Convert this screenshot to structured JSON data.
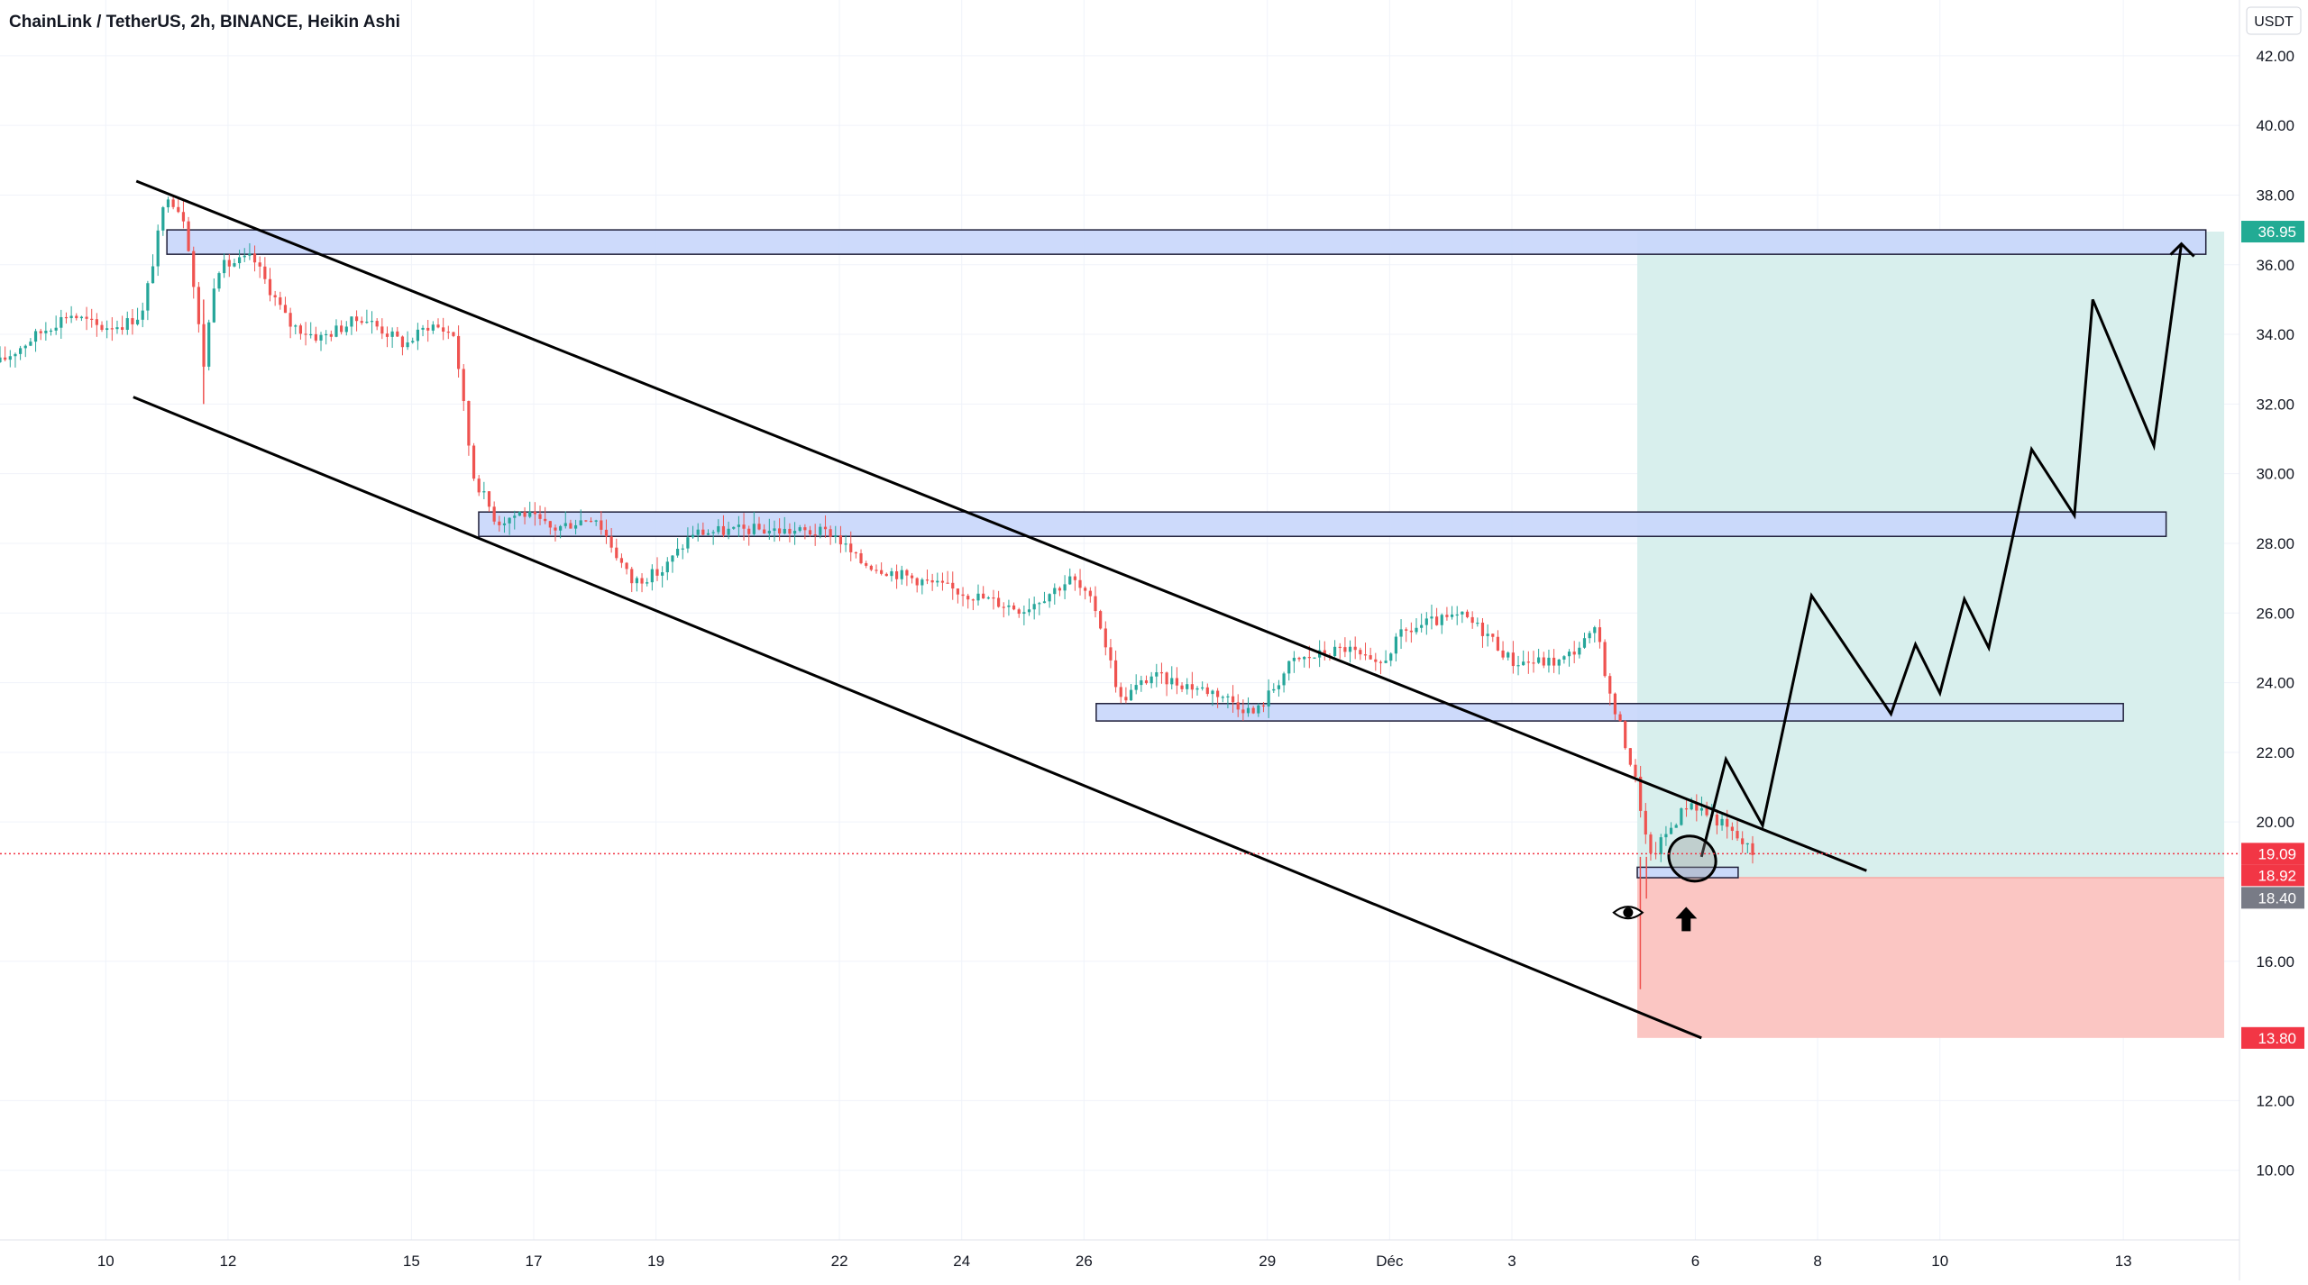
{
  "header": {
    "title": "ChainLink / TetherUS, 2h, BINANCE, Heikin Ashi"
  },
  "currency_badge": "USDT",
  "colors": {
    "up": "#26a69a",
    "down": "#ef5350",
    "zone_fill": "#c9d7fb",
    "target_fill": "#d8efed",
    "stop_fill": "#fbc6c3",
    "current_price": "#f23645",
    "target_label": "#22ab94",
    "entry_label": "#787b86",
    "stop_label": "#f23645"
  },
  "chart_data": {
    "type": "candlestick",
    "symbol": "ChainLink / TetherUS",
    "interval": "2h",
    "exchange": "BINANCE",
    "style": "Heikin Ashi",
    "y_ticks": [
      "42.00",
      "40.00",
      "38.00",
      "36.00",
      "34.00",
      "32.00",
      "30.00",
      "28.00",
      "26.00",
      "24.00",
      "22.00",
      "20.00",
      "16.00",
      "12.00",
      "10.00"
    ],
    "y_tick_values": [
      42,
      40,
      38,
      36,
      34,
      32,
      30,
      28,
      26,
      24,
      22,
      20,
      16,
      12,
      10
    ],
    "ylim": [
      8.0,
      43.6
    ],
    "x_ticks": [
      "10",
      "12",
      "15",
      "17",
      "19",
      "22",
      "24",
      "26",
      "29",
      "Déc",
      "3",
      "6",
      "8",
      "10",
      "13"
    ],
    "x_tick_days": [
      0,
      2,
      5,
      7,
      9,
      12,
      14,
      16,
      19,
      21,
      23,
      26,
      28,
      30,
      33
    ],
    "xlim_days": [
      -1.73,
      34.9
    ],
    "price_path": [
      [
        -1.73,
        33.2
      ],
      [
        -1.2,
        33.9
      ],
      [
        -0.6,
        34.6
      ],
      [
        -0.1,
        34.2
      ],
      [
        0.3,
        34.3
      ],
      [
        0.6,
        34.6
      ],
      [
        1.0,
        38.1
      ],
      [
        1.3,
        37.3
      ],
      [
        1.6,
        33.1
      ],
      [
        1.8,
        35.9
      ],
      [
        2.4,
        36.2
      ],
      [
        3.0,
        34.3
      ],
      [
        3.5,
        33.9
      ],
      [
        4.2,
        34.5
      ],
      [
        4.9,
        33.7
      ],
      [
        5.3,
        34.3
      ],
      [
        5.7,
        34.0
      ],
      [
        6.0,
        30.0
      ],
      [
        6.4,
        28.6
      ],
      [
        6.8,
        28.9
      ],
      [
        7.3,
        28.4
      ],
      [
        8.0,
        28.8
      ],
      [
        8.6,
        26.9
      ],
      [
        9.1,
        27.2
      ],
      [
        9.6,
        28.3
      ],
      [
        10.6,
        28.4
      ],
      [
        11.9,
        28.3
      ],
      [
        12.3,
        27.5
      ],
      [
        13.0,
        27.1
      ],
      [
        14.0,
        26.6
      ],
      [
        15.0,
        26.1
      ],
      [
        15.8,
        27.0
      ],
      [
        16.2,
        26.1
      ],
      [
        16.6,
        23.5
      ],
      [
        17.1,
        24.2
      ],
      [
        18.2,
        23.7
      ],
      [
        18.8,
        23.1
      ],
      [
        19.4,
        24.6
      ],
      [
        20.3,
        25.0
      ],
      [
        20.8,
        24.4
      ],
      [
        21.2,
        25.4
      ],
      [
        21.6,
        25.7
      ],
      [
        22.2,
        25.9
      ],
      [
        22.6,
        25.4
      ],
      [
        23.0,
        24.6
      ],
      [
        23.8,
        24.6
      ],
      [
        24.4,
        25.5
      ],
      [
        24.6,
        23.6
      ],
      [
        24.8,
        22.6
      ],
      [
        25.05,
        21.0
      ],
      [
        25.25,
        18.9
      ],
      [
        25.5,
        19.6
      ],
      [
        25.9,
        20.6
      ],
      [
        26.4,
        20.0
      ],
      [
        26.95,
        19.1
      ]
    ],
    "current_price": 19.09,
    "levels": {
      "target": 36.95,
      "entry": 18.92,
      "stop_base": 18.4,
      "stop": 13.8
    }
  },
  "drawings": {
    "zones": [
      {
        "name": "zone-36",
        "d0": 1.0,
        "d1": 34.35,
        "y0": 36.3,
        "y1": 37.0
      },
      {
        "name": "zone-28",
        "d0": 6.1,
        "d1": 33.7,
        "y0": 28.2,
        "y1": 28.9
      },
      {
        "name": "zone-23",
        "d0": 16.2,
        "d1": 33.0,
        "y0": 22.9,
        "y1": 23.4
      },
      {
        "name": "zone-18",
        "d0": 25.05,
        "d1": 26.7,
        "y0": 18.4,
        "y1": 18.7
      }
    ],
    "channel_upper": [
      [
        0.5,
        38.4
      ],
      [
        28.8,
        18.6
      ]
    ],
    "channel_lower": [
      [
        0.45,
        32.2
      ],
      [
        26.1,
        13.8
      ]
    ],
    "projection": [
      [
        26.1,
        19.0
      ],
      [
        26.5,
        21.8
      ],
      [
        27.1,
        19.9
      ],
      [
        27.9,
        26.5
      ],
      [
        29.2,
        23.1
      ],
      [
        29.6,
        25.1
      ],
      [
        30.0,
        23.7
      ],
      [
        30.4,
        26.4
      ],
      [
        30.8,
        25.0
      ],
      [
        31.5,
        30.7
      ],
      [
        32.2,
        28.8
      ],
      [
        32.5,
        35.0
      ],
      [
        33.5,
        30.8
      ],
      [
        33.95,
        36.6
      ]
    ],
    "position": {
      "d0": 25.05,
      "d1": 34.65
    },
    "circle": {
      "day": 25.95,
      "price": 18.95
    },
    "eye": {
      "day": 24.9,
      "price": 17.4
    },
    "arrow": {
      "day": 25.85,
      "price": 17.2
    }
  }
}
